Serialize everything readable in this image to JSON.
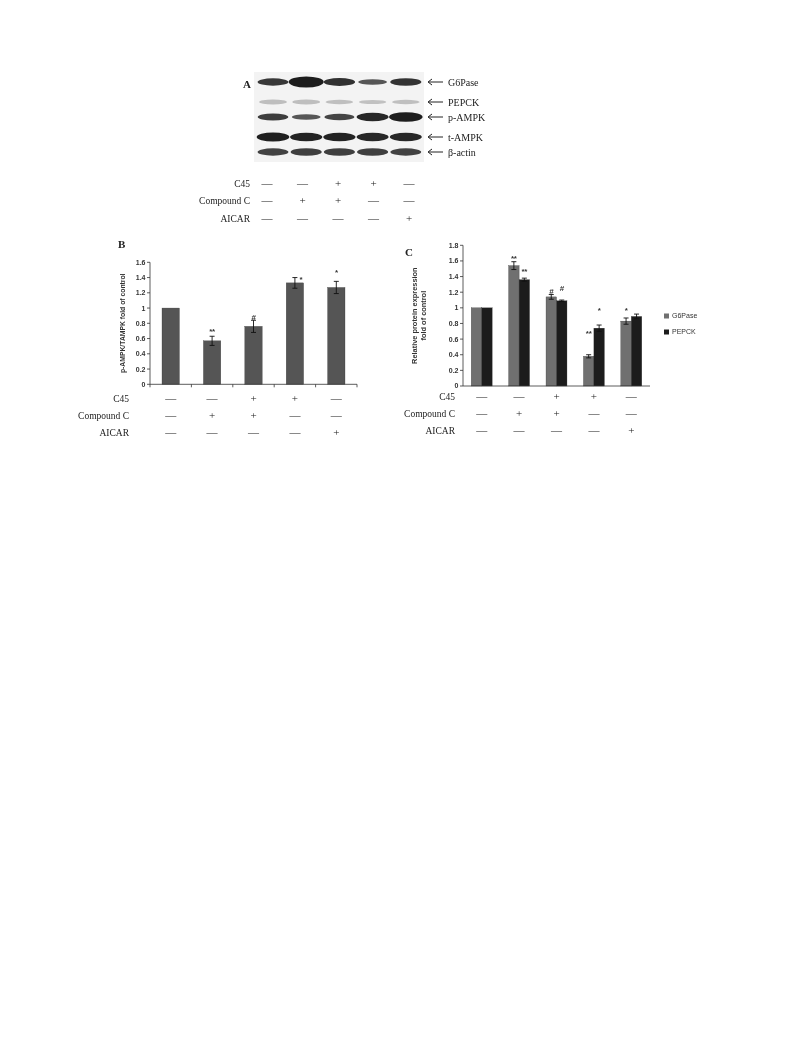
{
  "chart_data": [
    {
      "type": "other",
      "title": "A",
      "categories": [
        "—\n—\n—",
        "—\n+\n—",
        "+\n+\n—",
        "+\n—\n—",
        "—\n—\n+"
      ],
      "y_categories": [
        "G6Pase",
        "PEPCK",
        "p-AMPK",
        "t-AMPK",
        "β-actin"
      ],
      "annotations": [
        "C45",
        "Compound C",
        "AICAR"
      ]
    },
    {
      "type": "bar",
      "title": "B",
      "ylabel": "p-AMPK/TAMPK fold of control",
      "categories": [
        "—\n—\n—",
        "—\n+\n—",
        "+\n+\n—",
        "+\n—\n—",
        "—\n—\n+"
      ],
      "values": [
        1,
        0.57,
        0.76,
        1.33,
        1.27
      ],
      "errors": [
        null,
        0.06,
        0.08,
        0.07,
        0.08
      ],
      "color": "#555555",
      "ylim": [
        0,
        1.6
      ],
      "yticks": [
        0,
        0.2,
        0.4,
        0.6,
        0.8,
        1,
        1.2,
        1.4,
        1.6
      ],
      "annotations": [
        "C45",
        "Compound C",
        "AICAR",
        "**",
        "#",
        "*",
        "*"
      ]
    },
    {
      "type": "bar",
      "title": "C",
      "ylabel": "Relative protein expression\nfold of control",
      "categories": [
        "—\n—\n—",
        "—\n+\n—",
        "+\n+\n—",
        "+\n—\n—",
        "—\n—\n+"
      ],
      "series": [
        {
          "name": "G6Pase",
          "color": "#707070",
          "values": [
            1,
            1.54,
            1.14,
            0.38,
            0.83
          ],
          "errors": [
            null,
            0.05,
            0.03,
            0.02,
            0.04
          ]
        },
        {
          "name": "PEPCK",
          "color": "#1c1c1c",
          "values": [
            1,
            1.36,
            1.09,
            0.74,
            0.89
          ],
          "errors": [
            null,
            0.02,
            0.01,
            0.04,
            0.03
          ]
        }
      ],
      "ylim": [
        0,
        1.8
      ],
      "yticks": [
        0,
        0.2,
        0.4,
        0.6,
        0.8,
        1,
        1.2,
        1.4,
        1.6,
        1.8
      ],
      "legend": "right",
      "annotations": [
        "C45",
        "Compound C",
        "AICAR",
        "**",
        "**",
        "#",
        "#",
        "**",
        "*",
        "*"
      ]
    }
  ]
}
